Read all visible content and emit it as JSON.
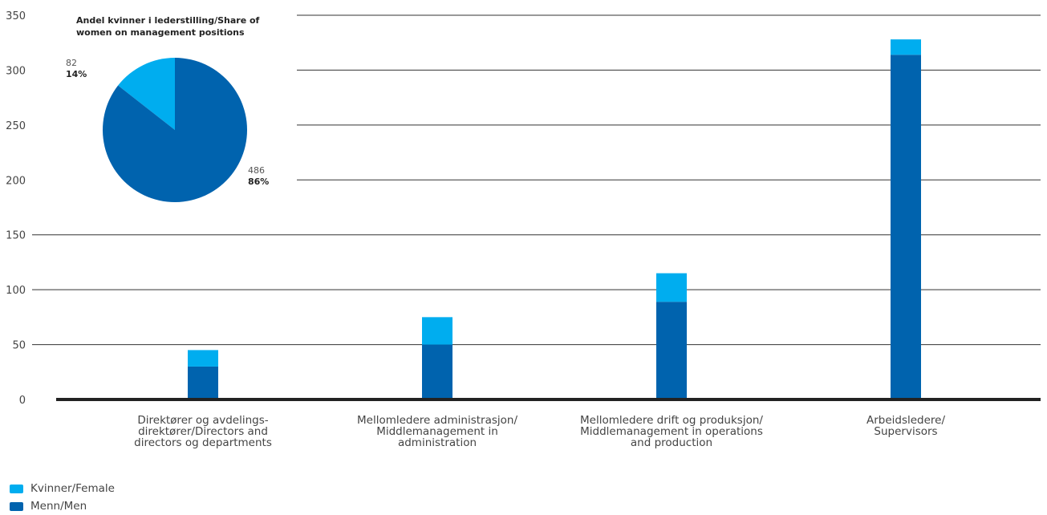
{
  "colors": {
    "female": "#00adef",
    "male": "#0063ae",
    "grid": "#333333",
    "axis": "#222222"
  },
  "chart_data": [
    {
      "type": "bar",
      "stacked": true,
      "ylim": [
        0,
        350
      ],
      "yticks": [
        0,
        50,
        100,
        150,
        200,
        250,
        300,
        350
      ],
      "grid": true,
      "categories": [
        [
          "Direktører og avdelings-",
          "direktører/Directors and",
          "directors og departments"
        ],
        [
          "Mellomledere administrasjon/",
          "Middlemanagement in",
          "administration"
        ],
        [
          "Mellomledere drift og produksjon/",
          "Middlemanagement in operations",
          "and production"
        ],
        [
          "Arbeidsledere/",
          "Supervisors"
        ]
      ],
      "series": [
        {
          "name": "Menn/Men",
          "values": [
            30,
            50,
            89,
            314
          ]
        },
        {
          "name": "Kvinner/Female",
          "values": [
            15,
            25,
            26,
            14
          ]
        }
      ],
      "legend_placement": "bottom-left"
    },
    {
      "type": "pie",
      "title": [
        "Andel kvinner i lederstilling/Share of",
        "women on management positions"
      ],
      "slices": [
        {
          "name": "Kvinner/Female",
          "count": "82",
          "percent": "14%",
          "value": 82
        },
        {
          "name": "Menn/Men",
          "count": "486",
          "percent": "86%",
          "value": 486
        }
      ]
    }
  ]
}
